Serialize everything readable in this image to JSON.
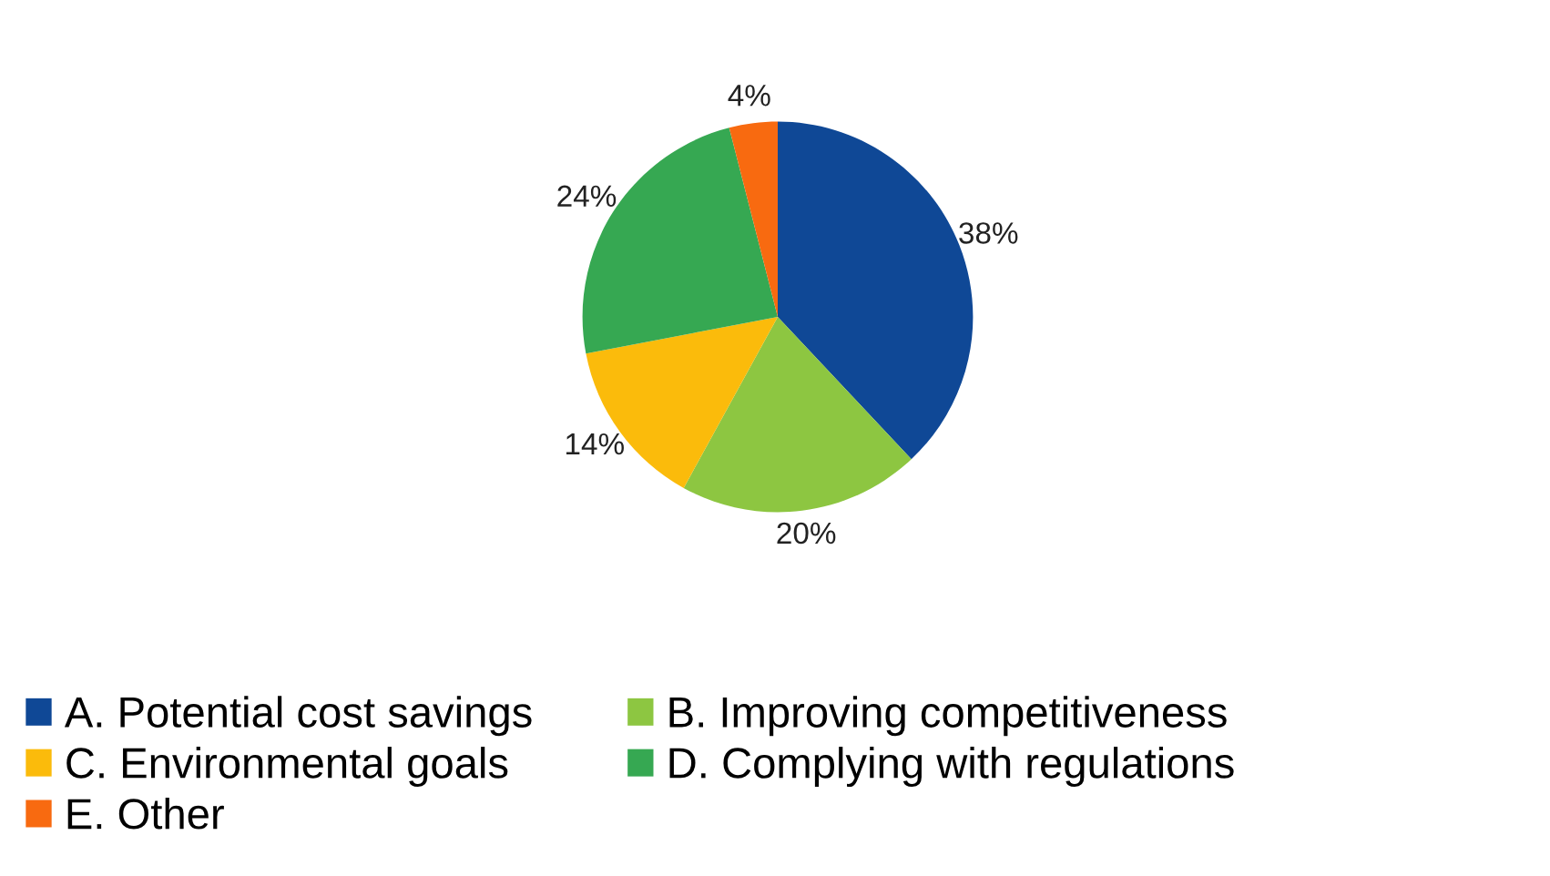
{
  "chart_data": {
    "type": "pie",
    "categories": [
      "A. Potential cost savings",
      "B. Improving competitiveness",
      "C. Environmental goals",
      "D. Complying with regulations",
      "E. Other"
    ],
    "values": [
      38,
      20,
      14,
      24,
      4
    ],
    "colors": [
      "#0f4896",
      "#8dc641",
      "#fbbb0b",
      "#36a852",
      "#f86a10"
    ],
    "value_labels": [
      "38%",
      "20%",
      "14%",
      "24%",
      "4%"
    ],
    "legend": "bottom"
  }
}
